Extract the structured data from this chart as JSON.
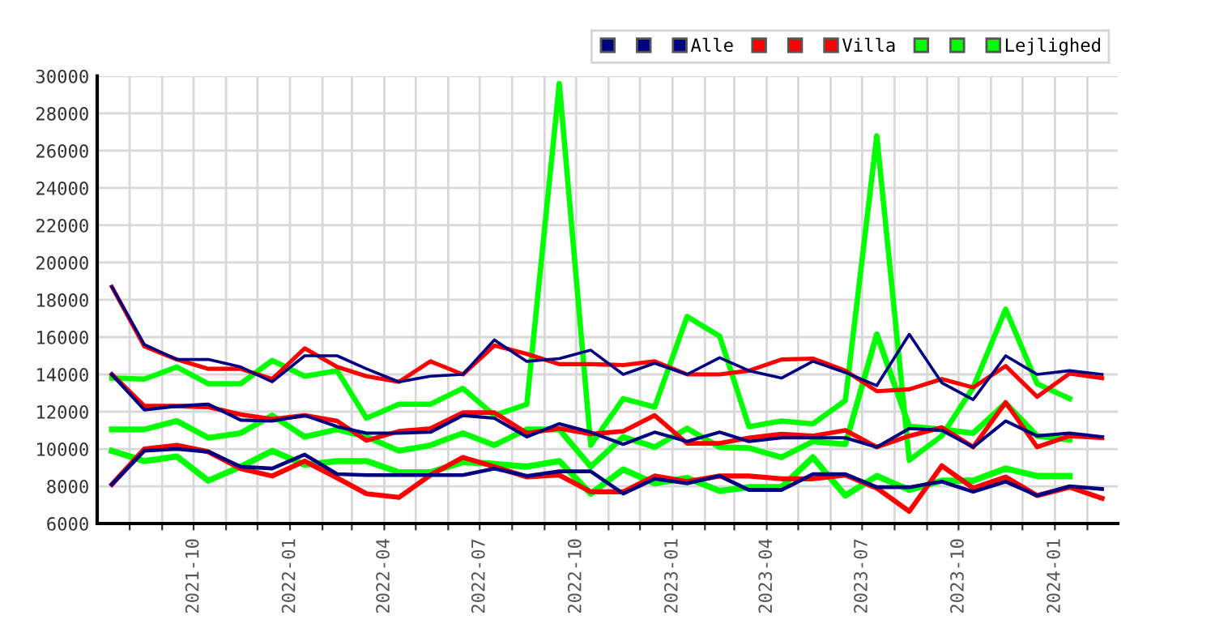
{
  "chart_data": {
    "type": "line",
    "x": [
      "2021-07-15",
      "2021-08-15",
      "2021-09-15",
      "2021-10-15",
      "2021-11-15",
      "2021-12-15",
      "2022-01-15",
      "2022-02-15",
      "2022-03-15",
      "2022-04-15",
      "2022-05-15",
      "2022-06-15",
      "2022-07-15",
      "2022-08-15",
      "2022-09-15",
      "2022-10-15",
      "2022-11-15",
      "2022-12-15",
      "2023-01-15",
      "2023-02-15",
      "2023-03-15",
      "2023-04-15",
      "2023-05-15",
      "2023-06-15",
      "2023-07-15",
      "2023-08-15",
      "2023-09-15",
      "2023-10-15",
      "2023-11-15",
      "2023-12-15",
      "2024-01-15",
      "2024-02-15"
    ],
    "series": [
      {
        "color": "#000080",
        "values": [
          18700,
          15600,
          14800,
          14800,
          14400,
          13600,
          15000,
          15000,
          14300,
          13600,
          13900,
          14000,
          15850,
          14700,
          14850,
          15300,
          14000,
          14600,
          14000,
          14900,
          14200,
          13800,
          14700,
          14100,
          13400,
          16150,
          13550,
          12650,
          15000,
          14000,
          14200,
          14000
        ]
      },
      {
        "color": "#000080",
        "values": [
          14000,
          12100,
          12300,
          12400,
          11550,
          11500,
          11800,
          11200,
          10850,
          10850,
          10900,
          11800,
          11650,
          10650,
          11350,
          10900,
          10250,
          10900,
          10400,
          10900,
          10400,
          10600,
          10600,
          10600,
          10100,
          11100,
          11000,
          10100,
          11500,
          10700,
          10850,
          10650
        ]
      },
      {
        "name": "Alle",
        "color": "#000080",
        "values": [
          8100,
          9900,
          10000,
          9850,
          9050,
          8950,
          9700,
          8650,
          8600,
          8600,
          8600,
          8600,
          8950,
          8550,
          8800,
          8800,
          7600,
          8400,
          8150,
          8550,
          7800,
          7800,
          8650,
          8650,
          7950,
          7950,
          8250,
          7700,
          8250,
          7500,
          8000,
          7850
        ]
      },
      {
        "color": "#ff0000",
        "values": [
          18700,
          15500,
          14800,
          14300,
          14300,
          13750,
          15400,
          14400,
          13900,
          13600,
          14700,
          14000,
          15550,
          15100,
          14550,
          14550,
          14500,
          14700,
          14000,
          14000,
          14200,
          14800,
          14850,
          14200,
          13100,
          13200,
          13750,
          13300,
          14450,
          12800,
          14050,
          13800
        ]
      },
      {
        "color": "#ff0000",
        "values": [
          14000,
          12300,
          12300,
          12250,
          11850,
          11600,
          11800,
          11500,
          10450,
          10950,
          11100,
          11950,
          11950,
          10850,
          11100,
          10800,
          10950,
          11800,
          10300,
          10300,
          10600,
          10800,
          10700,
          11000,
          10100,
          10700,
          11150,
          10100,
          12500,
          10100,
          10700,
          10600
        ]
      },
      {
        "name": "Villa",
        "color": "#ff0000",
        "values": [
          8100,
          10000,
          10200,
          9850,
          8950,
          8550,
          9350,
          8450,
          7600,
          7400,
          8600,
          9550,
          9050,
          8500,
          8600,
          7700,
          7700,
          8550,
          8250,
          8550,
          8550,
          8400,
          8400,
          8600,
          7900,
          6650,
          9100,
          7900,
          8500,
          7500,
          7950,
          7350
        ]
      },
      {
        "color": "#00ff00",
        "values": [
          13800,
          13750,
          14400,
          13500,
          13500,
          14750,
          13900,
          14200,
          11650,
          12400,
          12400,
          13250,
          11800,
          12400,
          29600,
          10200,
          12700,
          12250,
          17100,
          16050,
          11200,
          11500,
          11350,
          12600,
          26800,
          9400,
          10700,
          13300,
          17500,
          13500,
          12700,
          null
        ]
      },
      {
        "color": "#00ff00",
        "values": [
          11050,
          11050,
          11500,
          10600,
          10850,
          11800,
          10650,
          11050,
          10650,
          9900,
          10200,
          10850,
          10200,
          11050,
          11050,
          9050,
          10650,
          10100,
          11100,
          10100,
          10050,
          9550,
          10400,
          10250,
          16150,
          11200,
          11050,
          10850,
          12450,
          10700,
          10500,
          null
        ]
      },
      {
        "name": "Lejlighed",
        "color": "#00ff00",
        "values": [
          9900,
          9350,
          9600,
          8300,
          9050,
          9900,
          9150,
          9350,
          9350,
          8750,
          8750,
          9300,
          9200,
          9050,
          9350,
          7600,
          8900,
          8150,
          8450,
          7750,
          7950,
          7950,
          9550,
          7500,
          8550,
          7800,
          8300,
          8300,
          8950,
          8550,
          8550,
          null
        ]
      }
    ],
    "xlim": [
      "2021-07-01",
      "2024-03-01"
    ],
    "xticks": [
      {
        "value": "2021-08-01",
        "label": null
      },
      {
        "value": "2021-09-01",
        "label": null
      },
      {
        "value": "2021-10-01",
        "label": "2021-10"
      },
      {
        "value": "2021-11-01",
        "label": null
      },
      {
        "value": "2021-12-01",
        "label": null
      },
      {
        "value": "2022-01-01",
        "label": "2022-01"
      },
      {
        "value": "2022-02-01",
        "label": null
      },
      {
        "value": "2022-03-01",
        "label": null
      },
      {
        "value": "2022-04-01",
        "label": "2022-04"
      },
      {
        "value": "2022-05-01",
        "label": null
      },
      {
        "value": "2022-06-01",
        "label": null
      },
      {
        "value": "2022-07-01",
        "label": "2022-07"
      },
      {
        "value": "2022-08-01",
        "label": null
      },
      {
        "value": "2022-09-01",
        "label": null
      },
      {
        "value": "2022-10-01",
        "label": "2022-10"
      },
      {
        "value": "2022-11-01",
        "label": null
      },
      {
        "value": "2022-12-01",
        "label": null
      },
      {
        "value": "2023-01-01",
        "label": "2023-01"
      },
      {
        "value": "2023-02-01",
        "label": null
      },
      {
        "value": "2023-03-01",
        "label": null
      },
      {
        "value": "2023-04-01",
        "label": "2023-04"
      },
      {
        "value": "2023-05-01",
        "label": null
      },
      {
        "value": "2023-06-01",
        "label": null
      },
      {
        "value": "2023-07-01",
        "label": "2023-07"
      },
      {
        "value": "2023-08-01",
        "label": null
      },
      {
        "value": "2023-09-01",
        "label": null
      },
      {
        "value": "2023-10-01",
        "label": "2023-10"
      },
      {
        "value": "2023-11-01",
        "label": null
      },
      {
        "value": "2023-12-01",
        "label": null
      },
      {
        "value": "2024-01-01",
        "label": "2024-01"
      },
      {
        "value": "2024-02-01",
        "label": null
      }
    ],
    "ylim": [
      6000,
      30000
    ],
    "yticks": [
      6000,
      8000,
      10000,
      12000,
      14000,
      16000,
      18000,
      20000,
      22000,
      24000,
      26000,
      28000,
      30000
    ],
    "grid": true,
    "legend": "top right"
  }
}
